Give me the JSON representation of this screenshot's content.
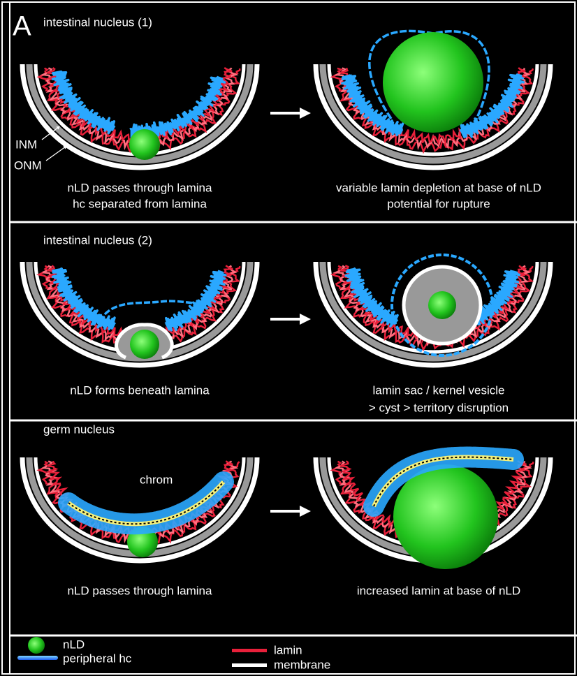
{
  "panel_label": "A",
  "panels": [
    {
      "title": "intestinal nucleus (1)",
      "labels": [
        "INM",
        "ONM"
      ],
      "left_caption": [
        "nLD passes through lamina",
        "hc separated from lamina"
      ],
      "right_caption": [
        "variable lamin depletion at base of nLD",
        "potential for rupture"
      ]
    },
    {
      "title": "intestinal nucleus (2)",
      "left_caption": [
        "nLD forms beneath lamina"
      ],
      "right_caption": [
        "lamin sac / kernel vesicle",
        "> cyst > territory disruption"
      ]
    },
    {
      "title": "germ nucleus",
      "labels": [
        "chrom"
      ],
      "left_caption": [
        "nLD passes through lamina"
      ],
      "right_caption": [
        "increased lamin at base of nLD"
      ]
    }
  ],
  "legend": [
    "nLD",
    "peripheral hc",
    "lamin",
    "membrane"
  ]
}
